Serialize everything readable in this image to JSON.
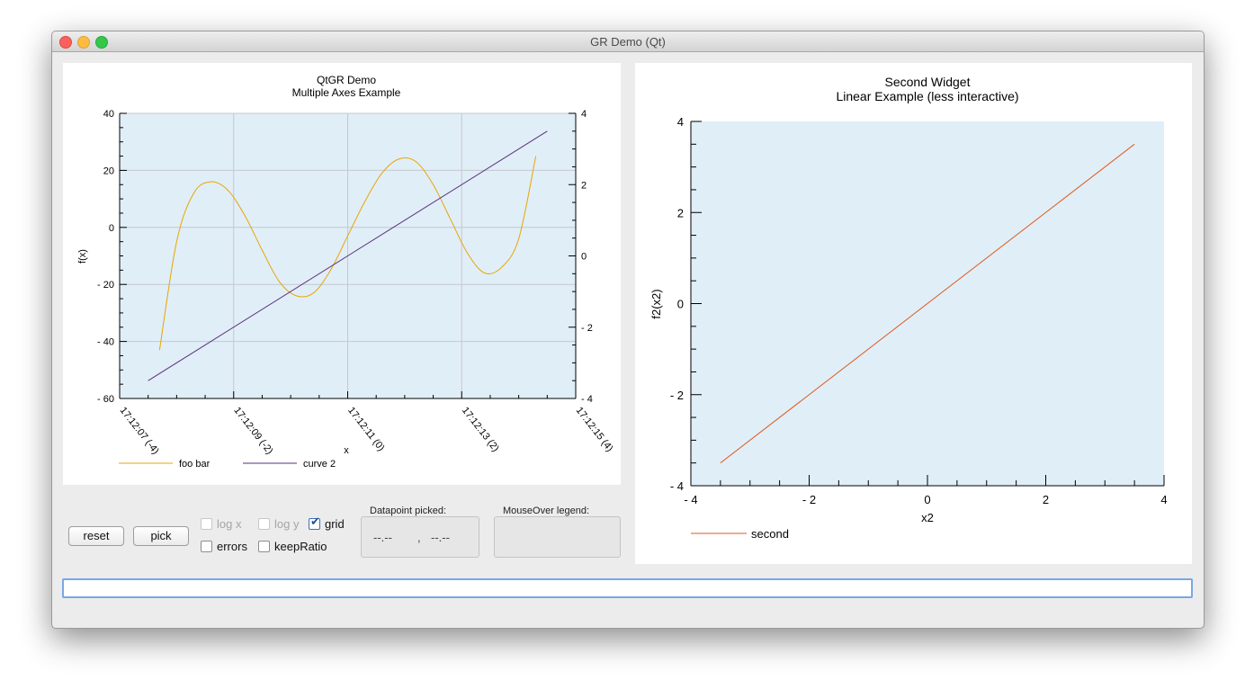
{
  "window": {
    "title": "GR Demo (Qt)"
  },
  "controls": {
    "reset_label": "reset",
    "pick_label": "pick",
    "logx_label": "log x",
    "logy_label": "log y",
    "grid_label": "grid",
    "errors_label": "errors",
    "keepratio_label": "keepRatio",
    "datapoint_label": "Datapoint picked:",
    "datapoint_x": "--.--",
    "datapoint_sep": ",",
    "datapoint_y": "--.--",
    "mouseover_label": "MouseOver legend:"
  },
  "command_input": {
    "value": ""
  },
  "chart_data": [
    {
      "type": "line",
      "title": "QtGR Demo",
      "subtitle": "Multiple Axes Example",
      "xlabel": "x",
      "ylabel": "f(x)",
      "xlim": [
        -4,
        4
      ],
      "ylim": [
        -60,
        40
      ],
      "y2lim": [
        -4,
        4
      ],
      "grid": true,
      "legend_position": "bottom-left",
      "x_ticks": [
        "17:12:07 (-4)",
        "17:12:09 (-2)",
        "17:12:11 (0)",
        "17:12:13 (2)",
        "17:12:15 (4)"
      ],
      "y_ticks": [
        "40",
        "20",
        "0",
        "- 20",
        "- 40",
        "- 60"
      ],
      "y2_ticks": [
        "4",
        "2",
        "0",
        "- 2",
        "- 4"
      ],
      "series": [
        {
          "name": "foo bar",
          "color": "#e8a600",
          "axis": "left",
          "x": [
            -3.3,
            -3.0,
            -2.7,
            -2.4,
            -2.1,
            -1.8,
            -1.5,
            -1.2,
            -0.9,
            -0.6,
            -0.3,
            0.0,
            0.3,
            0.6,
            0.9,
            1.2,
            1.5,
            1.8,
            2.1,
            2.4,
            2.7,
            3.0,
            3.3
          ],
          "y": [
            -43,
            -5,
            12,
            16,
            13,
            4,
            -8,
            -19,
            -24,
            -23,
            -15,
            -3,
            9,
            19,
            24,
            23,
            15,
            3,
            -9,
            -16,
            -14,
            -4,
            25
          ]
        },
        {
          "name": "curve 2",
          "color": "#5a2d7a",
          "axis": "right",
          "x": [
            -3.5,
            3.5
          ],
          "y": [
            -3.5,
            3.5
          ]
        }
      ]
    },
    {
      "type": "line",
      "title": "Second Widget",
      "subtitle": "Linear Example (less interactive)",
      "xlabel": "x2",
      "ylabel": "f2(x2)",
      "xlim": [
        -4,
        4
      ],
      "ylim": [
        -4,
        4
      ],
      "grid": false,
      "legend_position": "bottom-left",
      "x_ticks": [
        "- 4",
        "- 2",
        "0",
        "2",
        "4"
      ],
      "y_ticks": [
        "4",
        "2",
        "0",
        "- 2",
        "- 4"
      ],
      "series": [
        {
          "name": "second",
          "color": "#e05a1c",
          "x": [
            -3.5,
            3.5
          ],
          "y": [
            -3.5,
            3.5
          ]
        }
      ]
    }
  ]
}
